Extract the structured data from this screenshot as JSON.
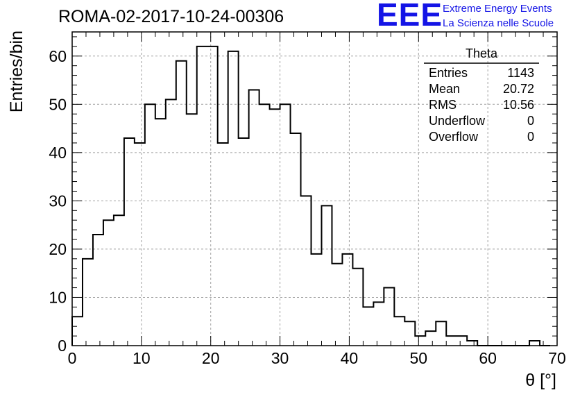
{
  "title": "ROMA-02-2017-10-24-00306",
  "logo": {
    "letters": "EEE",
    "line1": "Extreme Energy Events",
    "line2": "La Scienza nelle Scuole"
  },
  "stats": {
    "name": "Theta",
    "rows": [
      {
        "label": "Entries",
        "value": "1143"
      },
      {
        "label": "Mean",
        "value": "20.72"
      },
      {
        "label": "RMS",
        "value": "10.56"
      },
      {
        "label": "Underflow",
        "value": "0"
      },
      {
        "label": "Overflow",
        "value": "0"
      }
    ]
  },
  "colors": {
    "logo": "#1414e6",
    "histogram": "#000000",
    "grid": "#a0a0a0"
  },
  "chart_data": {
    "type": "bar",
    "style": "step-histogram",
    "xlabel": "θ [°]",
    "ylabel": "Entries/bin",
    "xlim": [
      0,
      70
    ],
    "ylim": [
      0,
      65
    ],
    "xticks": [
      0,
      10,
      20,
      30,
      40,
      50,
      60,
      70
    ],
    "yticks": [
      0,
      10,
      20,
      30,
      40,
      50,
      60
    ],
    "grid": true,
    "legend": "top-right",
    "bin_width": 1.5,
    "x_start": 0,
    "values": [
      6,
      18,
      23,
      26,
      27,
      43,
      42,
      50,
      47,
      51,
      59,
      48,
      62,
      62,
      42,
      61,
      43,
      53,
      50,
      49,
      50,
      44,
      31,
      19,
      29,
      17,
      19,
      16,
      8,
      9,
      12,
      6,
      5,
      2,
      3,
      5,
      2,
      2,
      1,
      0,
      0,
      0,
      0,
      0,
      1,
      0
    ]
  }
}
